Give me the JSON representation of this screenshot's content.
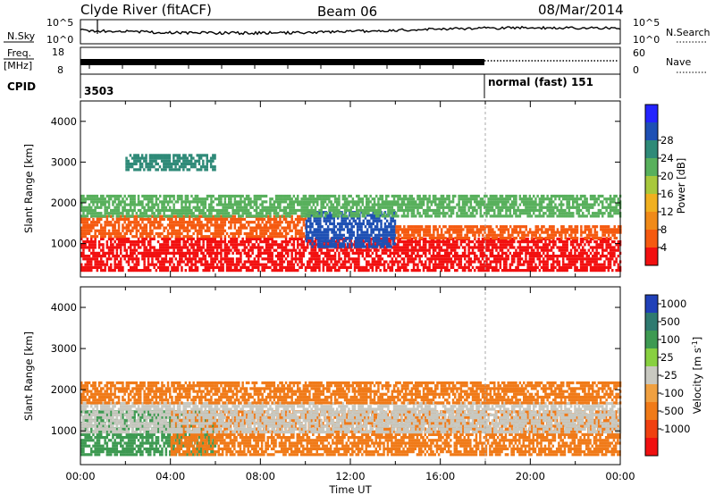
{
  "header": {
    "station_mode": "Clyde River (fitACF)",
    "beam": "Beam 06",
    "date": "08/Mar/2014"
  },
  "status_panels": {
    "nsky_label": "N.Sky",
    "nsearch_label": "N.Search",
    "nsky_ticks": [
      "10^5",
      "10^0"
    ],
    "nsky_ticks_right": [
      "10^5",
      "10^0"
    ],
    "freq_label_1": "Freq.",
    "freq_label_2": "[MHz]",
    "freq_ticks": [
      "18",
      "8"
    ],
    "nave_label": "Nave",
    "nave_ticks": [
      "60",
      "0"
    ],
    "cpid_label": "CPID",
    "cpid_primary": "3503",
    "cpid_secondary": "normal (fast) 151",
    "cpid_switch_hour": 18.0
  },
  "chart_data": [
    {
      "type": "heatmap",
      "parameter": "Power",
      "xlabel": "Time UT",
      "ylabel": "Slant Range [km]",
      "xlim_hours": [
        0,
        24
      ],
      "ylim_km": [
        180,
        4500
      ],
      "x_tick_labels": [
        "00:00",
        "04:00",
        "08:00",
        "12:00",
        "16:00",
        "20:00",
        "00:00"
      ],
      "y_tick_values": [
        1000,
        2000,
        3000,
        4000
      ],
      "colorbar_label": "Power [dB]",
      "colorbar_ticks": [
        "4",
        "8",
        "12",
        "16",
        "20",
        "24",
        "28"
      ],
      "colorbar_colors": [
        "#2424ff",
        "#1e50b4",
        "#2f8a78",
        "#58b05c",
        "#a8c83c",
        "#f0b020",
        "#f08a18",
        "#f55a10",
        "#f21010"
      ],
      "bands": [
        {
          "hours": [
            0,
            24
          ],
          "range_km": [
            350,
            1150
          ],
          "level": "#f21010"
        },
        {
          "hours": [
            0,
            10
          ],
          "range_km": [
            1150,
            1700
          ],
          "level": "#f55a10"
        },
        {
          "hours": [
            10,
            14
          ],
          "range_km": [
            900,
            1800
          ],
          "level": "#1e50b4"
        },
        {
          "hours": [
            14,
            24
          ],
          "range_km": [
            1150,
            1450
          ],
          "level": "#f55a10"
        },
        {
          "hours": [
            0,
            24
          ],
          "range_km": [
            1700,
            2200
          ],
          "level": "#58b05c"
        },
        {
          "hours": [
            2,
            6
          ],
          "range_km": [
            2800,
            3200
          ],
          "level": "#2f8a78"
        }
      ]
    },
    {
      "type": "heatmap",
      "parameter": "Velocity",
      "xlabel": "Time UT",
      "ylabel": "Slant Range [km]",
      "xlim_hours": [
        0,
        24
      ],
      "ylim_km": [
        180,
        4500
      ],
      "x_tick_labels": [
        "00:00",
        "04:00",
        "08:00",
        "12:00",
        "16:00",
        "20:00",
        "00:00"
      ],
      "y_tick_values": [
        1000,
        2000,
        3000,
        4000
      ],
      "colorbar_label": "Velocity [m s",
      "colorbar_unit_exponent": "-1",
      "colorbar_unit_close": "]",
      "colorbar_ticks": [
        "1000",
        "500",
        "100",
        "25",
        "-25",
        "-100",
        "-500",
        "-1000"
      ],
      "colorbar_colors": [
        "#2040b8",
        "#2f7a70",
        "#3e9a52",
        "#88d040",
        "#c8c8c0",
        "#f0a040",
        "#f07a18",
        "#f04010",
        "#f01010"
      ],
      "bands": [
        {
          "hours": [
            0,
            6
          ],
          "range_km": [
            400,
            1500
          ],
          "level": "#3e9a52"
        },
        {
          "hours": [
            4,
            24
          ],
          "range_km": [
            400,
            1500
          ],
          "level": "#f07a18"
        },
        {
          "hours": [
            0,
            24
          ],
          "range_km": [
            1000,
            1700
          ],
          "level": "#c8c8c0"
        },
        {
          "hours": [
            0,
            24
          ],
          "range_km": [
            1700,
            2200
          ],
          "level": "#f07a18"
        }
      ]
    }
  ]
}
